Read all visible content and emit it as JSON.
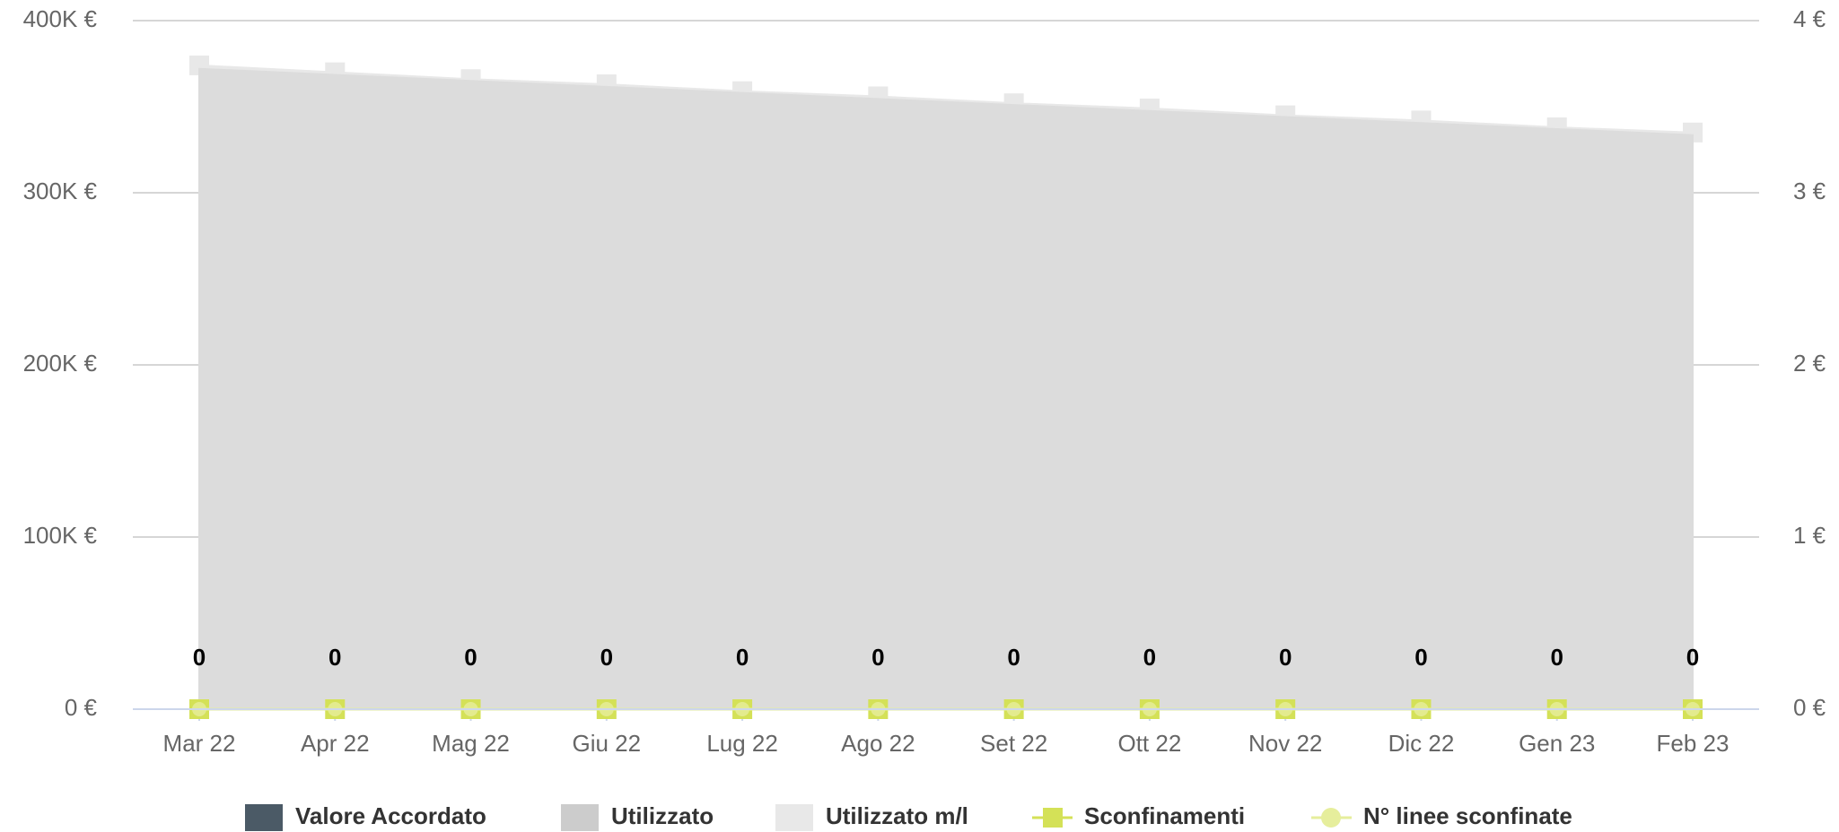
{
  "chart_data": {
    "type": "area",
    "categories": [
      "Mar 22",
      "Apr 22",
      "Mag 22",
      "Giu 22",
      "Lug 22",
      "Ago 22",
      "Set 22",
      "Ott 22",
      "Nov 22",
      "Dic 22",
      "Gen 23",
      "Feb 23"
    ],
    "series": [
      {
        "name": "Valore Accordato",
        "color": "#4b5a66",
        "kind": "area",
        "values": [
          0,
          0,
          0,
          0,
          0,
          0,
          0,
          0,
          0,
          0,
          0,
          0
        ]
      },
      {
        "name": "Utilizzato",
        "color": "#dcdcdc",
        "kind": "area",
        "values": [
          372000,
          368500,
          365000,
          361500,
          358000,
          354500,
          351000,
          347500,
          344000,
          340500,
          337000,
          333500
        ]
      },
      {
        "name": "Utilizzato m/l",
        "color": "#e8e8e8",
        "kind": "area-markers",
        "values": [
          374000,
          370000,
          366000,
          363000,
          359000,
          356000,
          352000,
          349000,
          345000,
          342000,
          338000,
          335000
        ]
      },
      {
        "name": "Sconfinamenti",
        "color": "#d4e157",
        "kind": "line-square",
        "values": [
          0,
          0,
          0,
          0,
          0,
          0,
          0,
          0,
          0,
          0,
          0,
          0
        ]
      },
      {
        "name": "N° linee sconfinate",
        "color": "#e6ee9c",
        "kind": "line-circle",
        "axis": "y2",
        "values": [
          0,
          0,
          0,
          0,
          0,
          0,
          0,
          0,
          0,
          0,
          0,
          0
        ]
      }
    ],
    "ylim": [
      0,
      400000
    ],
    "yticks": [
      {
        "value": 0,
        "label": "0 €"
      },
      {
        "value": 100000,
        "label": "100K €"
      },
      {
        "value": 200000,
        "label": "200K €"
      },
      {
        "value": 300000,
        "label": "300K €"
      },
      {
        "value": 400000,
        "label": "400K €"
      }
    ],
    "y2lim": [
      0,
      4
    ],
    "y2ticks": [
      {
        "value": 0,
        "label": "0 €"
      },
      {
        "value": 1,
        "label": "1 €"
      },
      {
        "value": 2,
        "label": "2 €"
      },
      {
        "value": 3,
        "label": "3 €"
      },
      {
        "value": 4,
        "label": "4 €"
      }
    ],
    "grid": true,
    "legend": "bottom"
  }
}
